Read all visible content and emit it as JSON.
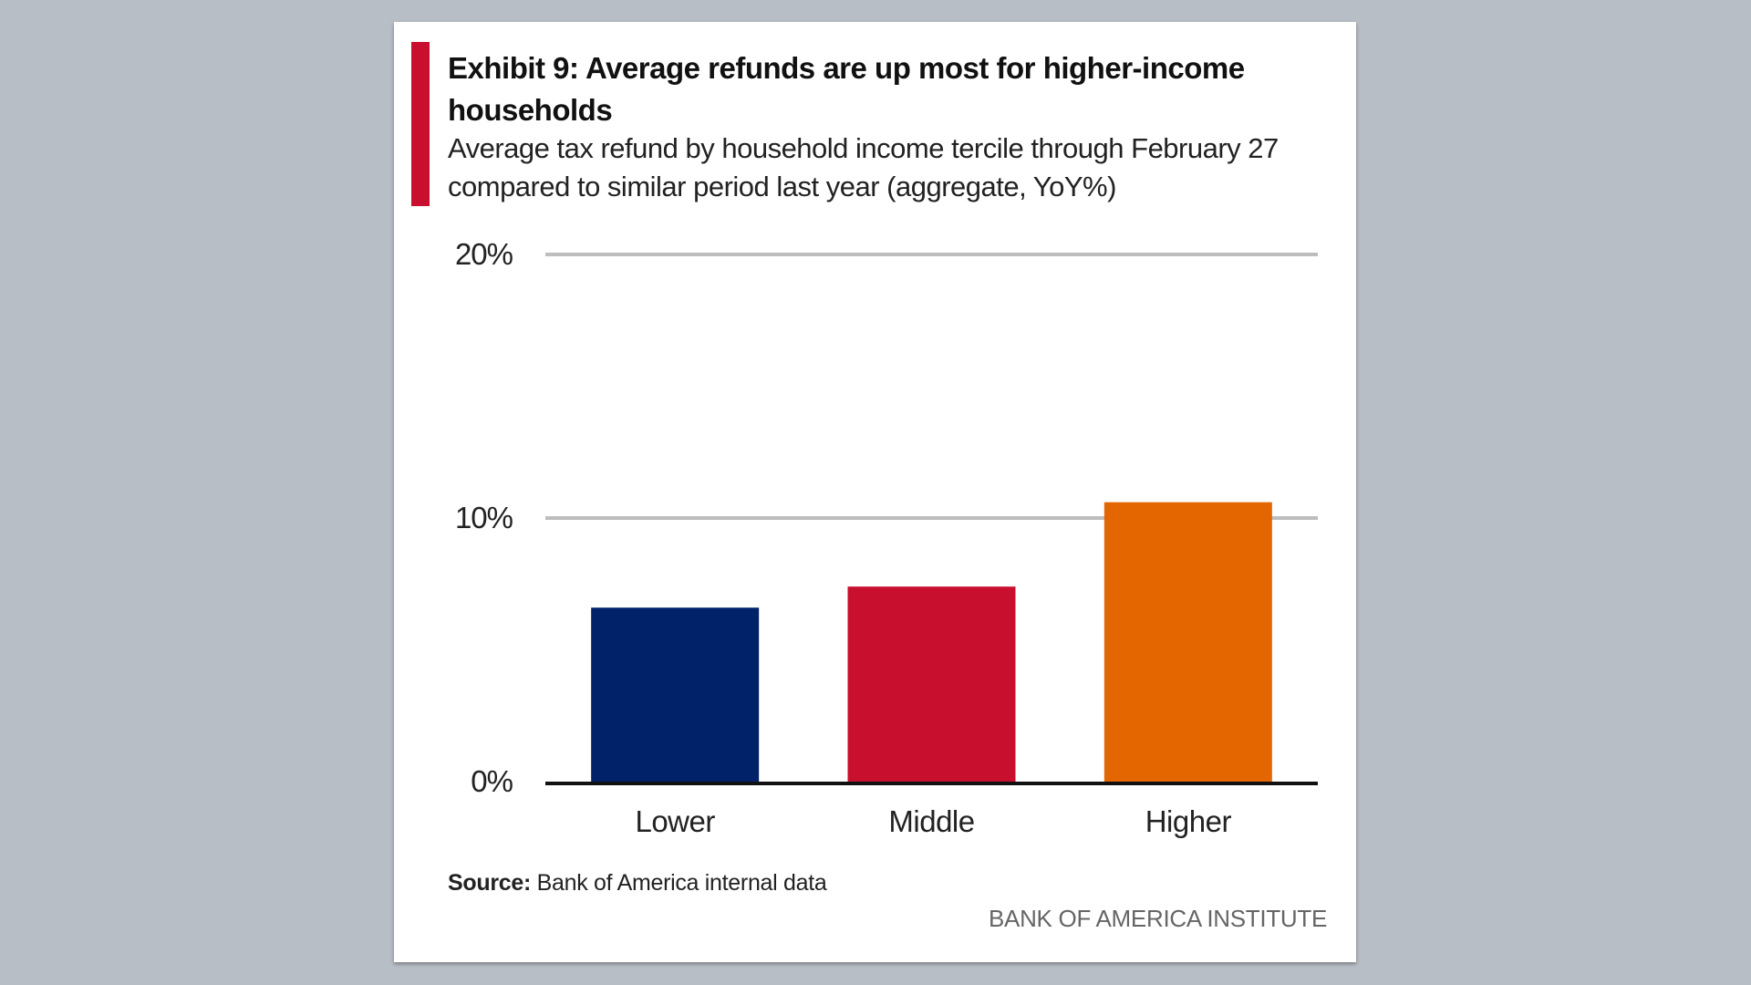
{
  "header": {
    "title": "Exhibit 9: Average refunds are up most for higher-income households",
    "subtitle": "Average tax refund by household income tercile through February 27 compared to similar period last year (aggregate, YoY%)"
  },
  "footer": {
    "source_label": "Source:",
    "source_text": " Bank of America internal data",
    "brand": "BANK OF AMERICA INSTITUTE"
  },
  "colors": {
    "accent": "#c8102e",
    "lower": "#012169",
    "middle": "#c8102e",
    "higher": "#e36600",
    "grid": "#bdbdbd",
    "axis": "#111111"
  },
  "chart_data": {
    "type": "bar",
    "title": "Exhibit 9: Average refunds are up most for higher-income households",
    "subtitle": "Average tax refund by household income tercile through February 27 compared to similar period last year (aggregate, YoY%)",
    "categories": [
      "Lower",
      "Middle",
      "Higher"
    ],
    "values": [
      6.6,
      7.4,
      10.6
    ],
    "bar_colors": [
      "#012169",
      "#c8102e",
      "#e36600"
    ],
    "ylim": [
      0,
      20
    ],
    "yticks": [
      0,
      10,
      20
    ],
    "ytick_labels": [
      "0%",
      "10%",
      "20%"
    ],
    "grid": true,
    "legend": "none",
    "xlabel": "",
    "ylabel": ""
  }
}
